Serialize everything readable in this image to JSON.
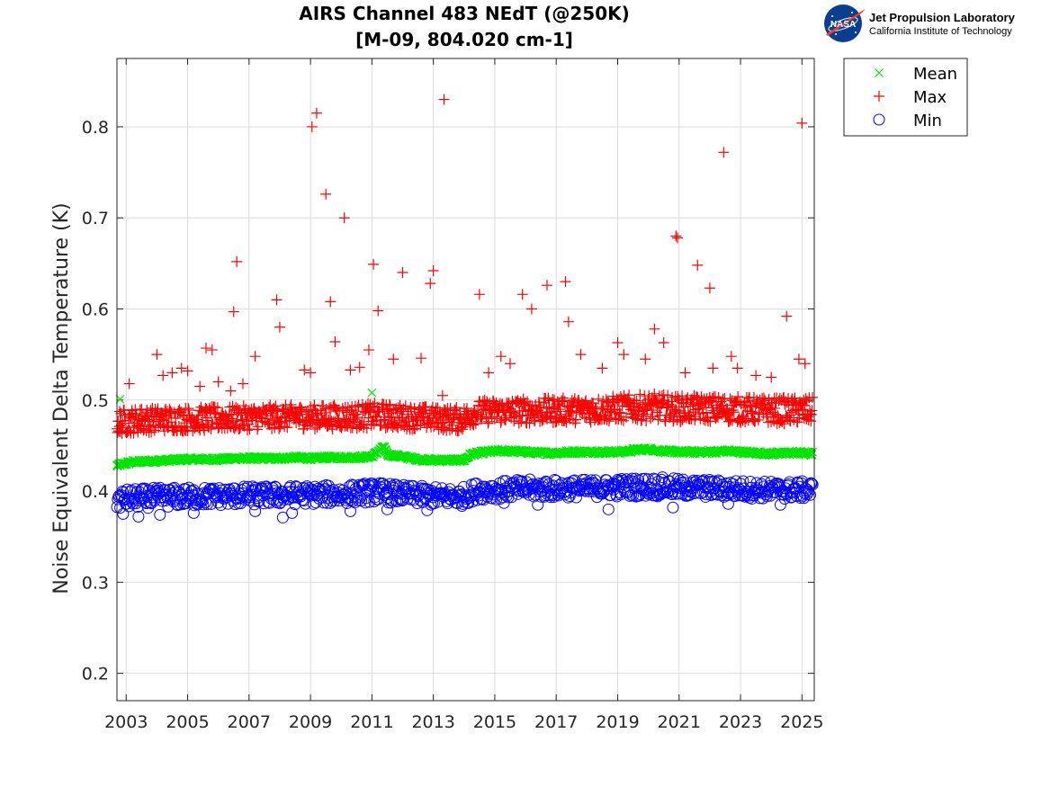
{
  "chart_data": {
    "type": "scatter",
    "title_line1": "AIRS Channel 483 NEdT (@250K)",
    "title_line2": "[M-09, 804.020 cm-1]",
    "xlabel": "",
    "ylabel": "Noise Equivalent Delta Temperature (K)",
    "xlim": [
      2002.7,
      2025.4
    ],
    "ylim": [
      0.17,
      0.875
    ],
    "x_ticks": [
      2003,
      2005,
      2007,
      2009,
      2011,
      2013,
      2015,
      2017,
      2019,
      2021,
      2023,
      2025
    ],
    "x_tick_labels": [
      "2003",
      "2005",
      "2007",
      "2009",
      "2011",
      "2013",
      "2015",
      "2017",
      "2019",
      "2021",
      "2023",
      "2025"
    ],
    "y_ticks": [
      0.2,
      0.3,
      0.4,
      0.5,
      0.6,
      0.7,
      0.8
    ],
    "y_tick_labels": [
      "0.2",
      "0.3",
      "0.4",
      "0.5",
      "0.6",
      "0.7",
      "0.8"
    ],
    "grid": true,
    "legend_position": "outside-top-right",
    "series": [
      {
        "name": "Mean",
        "marker": "x",
        "color": "#00e600",
        "x": [
          2002.7,
          2003.2,
          2003.8,
          2004.5,
          2005.0,
          2005.5,
          2006.0,
          2006.5,
          2007.0,
          2007.5,
          2008.0,
          2008.5,
          2009.0,
          2009.5,
          2010.0,
          2010.5,
          2011.0,
          2011.4,
          2011.5,
          2012.0,
          2012.5,
          2013.0,
          2013.5,
          2014.0,
          2014.2,
          2014.5,
          2015.0,
          2015.5,
          2016.0,
          2016.5,
          2017.0,
          2017.5,
          2018.0,
          2018.5,
          2019.0,
          2019.4,
          2019.5,
          2020.0,
          2020.5,
          2021.0,
          2021.5,
          2022.0,
          2022.5,
          2023.0,
          2023.5,
          2024.0,
          2024.5,
          2025.0,
          2025.3,
          2002.8,
          2011.0
        ],
        "y": [
          0.428,
          0.432,
          0.433,
          0.434,
          0.435,
          0.435,
          0.435,
          0.436,
          0.436,
          0.436,
          0.436,
          0.437,
          0.436,
          0.437,
          0.437,
          0.437,
          0.438,
          0.449,
          0.44,
          0.438,
          0.435,
          0.434,
          0.434,
          0.434,
          0.44,
          0.442,
          0.444,
          0.444,
          0.443,
          0.442,
          0.442,
          0.443,
          0.443,
          0.443,
          0.443,
          0.444,
          0.445,
          0.446,
          0.444,
          0.443,
          0.443,
          0.443,
          0.444,
          0.443,
          0.442,
          0.441,
          0.442,
          0.442,
          0.441,
          0.501,
          0.508
        ]
      },
      {
        "name": "Max",
        "marker": "+",
        "color": "#ff0000",
        "x": [
          2002.8,
          2003.1,
          2003.5,
          2004.0,
          2004.2,
          2004.5,
          2004.8,
          2005.0,
          2005.4,
          2005.6,
          2005.8,
          2006.0,
          2006.4,
          2006.5,
          2006.6,
          2006.8,
          2007.2,
          2007.9,
          2008.0,
          2008.8,
          2009.0,
          2009.05,
          2009.2,
          2009.5,
          2009.65,
          2009.8,
          2010.1,
          2010.3,
          2010.6,
          2010.9,
          2011.05,
          2011.2,
          2011.7,
          2012.0,
          2012.6,
          2012.9,
          2013.0,
          2013.3,
          2013.35,
          2014.5,
          2014.8,
          2015.2,
          2015.5,
          2015.9,
          2016.2,
          2016.7,
          2017.3,
          2017.4,
          2017.8,
          2018.5,
          2019.0,
          2019.2,
          2019.9,
          2020.2,
          2020.5,
          2020.9,
          2020.95,
          2021.2,
          2021.6,
          2022.0,
          2022.1,
          2022.45,
          2022.7,
          2022.9,
          2023.5,
          2024.0,
          2024.5,
          2024.9,
          2025.0,
          2025.1
        ],
        "y": [
          0.465,
          0.518,
          0.49,
          0.55,
          0.527,
          0.53,
          0.535,
          0.532,
          0.515,
          0.557,
          0.555,
          0.52,
          0.51,
          0.597,
          0.652,
          0.518,
          0.548,
          0.61,
          0.58,
          0.533,
          0.53,
          0.8,
          0.815,
          0.726,
          0.608,
          0.564,
          0.7,
          0.533,
          0.536,
          0.555,
          0.649,
          0.598,
          0.545,
          0.64,
          0.546,
          0.628,
          0.642,
          0.505,
          0.83,
          0.616,
          0.53,
          0.548,
          0.54,
          0.616,
          0.6,
          0.626,
          0.63,
          0.586,
          0.55,
          0.535,
          0.563,
          0.55,
          0.545,
          0.578,
          0.563,
          0.68,
          0.678,
          0.53,
          0.648,
          0.623,
          0.535,
          0.772,
          0.548,
          0.535,
          0.527,
          0.525,
          0.592,
          0.545,
          0.804,
          0.54
        ],
        "band": {
          "years": [
            2002.7,
            2004,
            2006,
            2008,
            2010,
            2011.2,
            2012,
            2013,
            2013.9,
            2014.4,
            2016,
            2018,
            2019.5,
            2020.2,
            2021,
            2022,
            2023,
            2024,
            2025.35
          ],
          "low": [
            0.462,
            0.465,
            0.466,
            0.468,
            0.468,
            0.469,
            0.468,
            0.467,
            0.465,
            0.474,
            0.474,
            0.475,
            0.477,
            0.477,
            0.476,
            0.476,
            0.475,
            0.474,
            0.473
          ],
          "high": [
            0.49,
            0.492,
            0.493,
            0.495,
            0.495,
            0.497,
            0.495,
            0.493,
            0.492,
            0.5,
            0.502,
            0.503,
            0.506,
            0.507,
            0.505,
            0.505,
            0.504,
            0.503,
            0.503
          ]
        }
      },
      {
        "name": "Min",
        "marker": "o",
        "color": "#0000ff",
        "x": [
          2002.9,
          2003.4,
          2004.1,
          2005.2,
          2007.2,
          2008.1,
          2008.4,
          2010.3,
          2011.5,
          2012.8,
          2015.3,
          2016.4,
          2018.7,
          2020.8,
          2022.6,
          2024.3
        ],
        "y": [
          0.375,
          0.372,
          0.374,
          0.376,
          0.378,
          0.371,
          0.376,
          0.378,
          0.38,
          0.379,
          0.387,
          0.385,
          0.38,
          0.382,
          0.386,
          0.385
        ],
        "band": {
          "years": [
            2002.7,
            2004,
            2006,
            2008,
            2010,
            2011.2,
            2012,
            2013,
            2013.9,
            2014.4,
            2016,
            2018,
            2019.5,
            2020.2,
            2021,
            2022,
            2023,
            2024,
            2025.35
          ],
          "low": [
            0.38,
            0.382,
            0.384,
            0.385,
            0.386,
            0.388,
            0.386,
            0.384,
            0.383,
            0.39,
            0.392,
            0.393,
            0.394,
            0.394,
            0.393,
            0.393,
            0.392,
            0.391,
            0.391
          ],
          "high": [
            0.402,
            0.404,
            0.405,
            0.406,
            0.407,
            0.41,
            0.407,
            0.405,
            0.404,
            0.41,
            0.413,
            0.413,
            0.415,
            0.416,
            0.414,
            0.413,
            0.412,
            0.411,
            0.411
          ]
        }
      }
    ]
  },
  "logo": {
    "org_name": "Jet Propulsion Laboratory",
    "org_sub": "California Institute of Technology",
    "agency_mark": "NASA",
    "icon": "nasa-meatball-icon"
  },
  "legend": {
    "items": [
      {
        "label": "Mean",
        "marker": "x",
        "color": "#00e600"
      },
      {
        "label": "Max",
        "marker": "+",
        "color": "#ff0000"
      },
      {
        "label": "Min",
        "marker": "o",
        "color": "#0000ff"
      }
    ]
  }
}
